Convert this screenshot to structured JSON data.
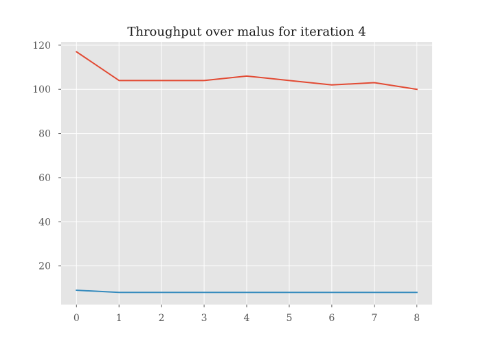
{
  "chart_data": {
    "type": "line",
    "title": "Throughput over malus for iteration 4",
    "xlabel": "",
    "ylabel": "",
    "x": [
      0,
      1,
      2,
      3,
      4,
      5,
      6,
      7,
      8
    ],
    "series": [
      {
        "values": [
          117,
          104,
          104,
          104,
          106,
          104,
          102,
          103,
          100
        ],
        "color": "#E24A33"
      },
      {
        "values": [
          9,
          8,
          8,
          8,
          8,
          8,
          8,
          8,
          8
        ],
        "color": "#348ABD"
      }
    ],
    "xlim": [
      -0.36,
      8.36
    ],
    "ylim": [
      2.5,
      121.5
    ],
    "xticks": [
      "0",
      "1",
      "2",
      "3",
      "4",
      "5",
      "6",
      "7",
      "8"
    ],
    "yticks": [
      "20",
      "40",
      "60",
      "80",
      "100",
      "120"
    ],
    "grid": true,
    "legend": "none",
    "plot_background": "#E5E5E5",
    "grid_color": "#FFFFFF"
  }
}
